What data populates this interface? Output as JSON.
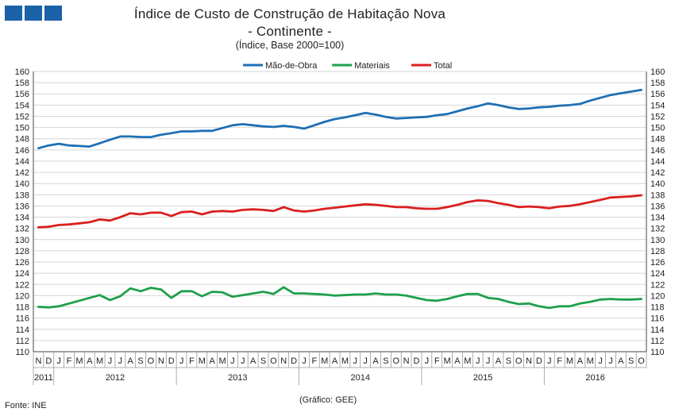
{
  "header": {
    "title_line1": "Índice de Custo de Construção de Habitação Nova",
    "title_line2": "- Continente -",
    "subtitle": "(Índice, Base 2000=100)"
  },
  "footer": {
    "source": "Fonte: INE",
    "credit": "(Gráfico: GEE)"
  },
  "chart_data": {
    "type": "line",
    "months": [
      "N",
      "D",
      "J",
      "F",
      "M",
      "A",
      "M",
      "J",
      "J",
      "A",
      "S",
      "O",
      "N",
      "D",
      "J",
      "F",
      "M",
      "A",
      "M",
      "J",
      "J",
      "A",
      "S",
      "O",
      "N",
      "D",
      "J",
      "F",
      "M",
      "A",
      "M",
      "J",
      "J",
      "A",
      "S",
      "O",
      "N",
      "D",
      "J",
      "F",
      "M",
      "A",
      "M",
      "J",
      "J",
      "A",
      "S",
      "O",
      "N",
      "D",
      "J",
      "F",
      "M",
      "A",
      "M",
      "J",
      "J",
      "A",
      "S",
      "O"
    ],
    "years": [
      {
        "label": "2011",
        "start": 0,
        "end": 2
      },
      {
        "label": "2012",
        "start": 2,
        "end": 14
      },
      {
        "label": "2013",
        "start": 14,
        "end": 26
      },
      {
        "label": "2014",
        "start": 26,
        "end": 38
      },
      {
        "label": "2015",
        "start": 38,
        "end": 50
      },
      {
        "label": "2016",
        "start": 50,
        "end": 60
      }
    ],
    "ylim": [
      110,
      160
    ],
    "ytick_step": 2,
    "grid": true,
    "legend_position": "top",
    "series": [
      {
        "name": "Mão-de-Obra",
        "color": "#1f6fb5",
        "values": [
          146.3,
          146.8,
          147.1,
          146.8,
          146.7,
          146.6,
          147.2,
          147.8,
          148.4,
          148.4,
          148.3,
          148.3,
          148.7,
          149.0,
          149.3,
          149.3,
          149.4,
          149.4,
          149.9,
          150.4,
          150.6,
          150.4,
          150.2,
          150.1,
          150.3,
          150.1,
          149.8,
          150.4,
          151.0,
          151.5,
          151.8,
          152.2,
          152.6,
          152.3,
          151.9,
          151.6,
          151.7,
          151.8,
          151.9,
          152.2,
          152.4,
          152.9,
          153.4,
          153.8,
          154.3,
          154.0,
          153.6,
          153.3,
          153.4,
          153.6,
          153.7,
          153.9,
          154.0,
          154.2,
          154.8,
          155.3,
          155.8,
          156.1,
          156.4,
          156.7
        ]
      },
      {
        "name": "Materiais",
        "color": "#1ea04b",
        "values": [
          118.0,
          117.9,
          118.1,
          118.6,
          119.1,
          119.6,
          120.1,
          119.2,
          119.9,
          121.3,
          120.8,
          121.4,
          121.1,
          119.6,
          120.8,
          120.8,
          119.9,
          120.7,
          120.6,
          119.8,
          120.1,
          120.4,
          120.7,
          120.3,
          121.5,
          120.4,
          120.4,
          120.3,
          120.2,
          120.0,
          120.1,
          120.2,
          120.2,
          120.4,
          120.2,
          120.2,
          120.0,
          119.6,
          119.2,
          119.1,
          119.4,
          119.9,
          120.3,
          120.3,
          119.6,
          119.4,
          118.9,
          118.5,
          118.6,
          118.1,
          117.8,
          118.1,
          118.1,
          118.6,
          118.9,
          119.3,
          119.4,
          119.3,
          119.3,
          119.4
        ]
      },
      {
        "name": "Total",
        "color": "#d9201f",
        "values": [
          132.2,
          132.3,
          132.6,
          132.7,
          132.9,
          133.1,
          133.6,
          133.4,
          134.0,
          134.7,
          134.5,
          134.8,
          134.8,
          134.2,
          134.9,
          135.0,
          134.5,
          135.0,
          135.1,
          135.0,
          135.3,
          135.4,
          135.3,
          135.1,
          135.8,
          135.2,
          135.0,
          135.2,
          135.5,
          135.7,
          135.9,
          136.1,
          136.3,
          136.2,
          136.0,
          135.8,
          135.8,
          135.6,
          135.5,
          135.5,
          135.8,
          136.2,
          136.7,
          137.0,
          136.9,
          136.5,
          136.2,
          135.8,
          135.9,
          135.8,
          135.6,
          135.9,
          136.0,
          136.3,
          136.7,
          137.1,
          137.5,
          137.6,
          137.7,
          137.9
        ]
      }
    ]
  }
}
